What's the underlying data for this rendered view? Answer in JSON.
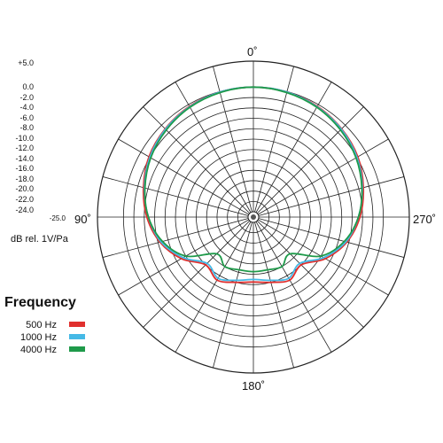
{
  "chart_data": {
    "type": "polar",
    "title": "",
    "radial_unit_label": "dB rel. 1V/Pa",
    "radial_scale": [
      "+5.0",
      "0.0",
      "-2.0",
      "-4.0",
      "-6.0",
      "-8.0",
      "-10.0",
      "-12.0",
      "-14.0",
      "-16.0",
      "-18.0",
      "-20.0",
      "-22.0",
      "-24.0",
      "-25.0"
    ],
    "angle_labels": [
      {
        "text": "0˚",
        "angle": 0
      },
      {
        "text": "90˚",
        "angle": 90
      },
      {
        "text": "180˚",
        "angle": 180
      },
      {
        "text": "270˚",
        "angle": 270
      }
    ],
    "angle_direction": "counterclockwise-left",
    "grid": true,
    "legend": {
      "title": "Frequency",
      "placement": "bottom-left",
      "items": [
        {
          "label": "500 Hz",
          "color": "#e0302e"
        },
        {
          "label": "1000 Hz",
          "color": "#45b9e6"
        },
        {
          "label": "4000 Hz",
          "color": "#1f9a4a"
        }
      ]
    },
    "series": [
      {
        "name": "500 Hz",
        "color": "#e0302e",
        "angles": [
          0,
          15,
          30,
          45,
          60,
          75,
          90,
          105,
          120,
          135,
          150,
          165,
          180,
          195,
          210,
          225,
          240,
          255,
          270,
          285,
          300,
          315,
          330,
          345,
          360
        ],
        "db": [
          0.0,
          -0.1,
          -0.4,
          -1.0,
          -1.8,
          -3.1,
          -4.5,
          -6.4,
          -9.0,
          -12.0,
          -11.0,
          -12.0,
          -12.5,
          -12.0,
          -11.0,
          -12.0,
          -9.0,
          -6.4,
          -4.5,
          -3.1,
          -1.8,
          -1.0,
          -0.4,
          -0.1,
          0.0
        ]
      },
      {
        "name": "1000 Hz",
        "color": "#45b9e6",
        "angles": [
          0,
          15,
          30,
          45,
          60,
          75,
          90,
          105,
          120,
          135,
          150,
          165,
          180,
          195,
          210,
          225,
          240,
          255,
          270,
          285,
          300,
          315,
          330,
          345,
          360
        ],
        "db": [
          0.0,
          -0.1,
          -0.5,
          -1.1,
          -2.0,
          -3.3,
          -4.8,
          -6.6,
          -9.4,
          -12.4,
          -11.4,
          -12.4,
          -13.0,
          -12.4,
          -11.4,
          -12.4,
          -9.4,
          -6.6,
          -4.8,
          -3.3,
          -2.0,
          -1.1,
          -0.5,
          -0.1,
          0.0
        ]
      },
      {
        "name": "4000 Hz",
        "color": "#1f9a4a",
        "angles": [
          0,
          15,
          30,
          45,
          60,
          75,
          90,
          105,
          120,
          135,
          150,
          165,
          180,
          195,
          210,
          225,
          240,
          255,
          270,
          285,
          300,
          315,
          330,
          345,
          360
        ],
        "db": [
          0.0,
          -0.2,
          -0.6,
          -1.3,
          -2.2,
          -3.4,
          -4.8,
          -6.9,
          -10.0,
          -15.0,
          -14.0,
          -14.5,
          -14.5,
          -14.5,
          -14.0,
          -15.0,
          -10.0,
          -6.9,
          -4.8,
          -3.4,
          -2.2,
          -1.3,
          -0.6,
          -0.2,
          0.0
        ]
      }
    ]
  }
}
